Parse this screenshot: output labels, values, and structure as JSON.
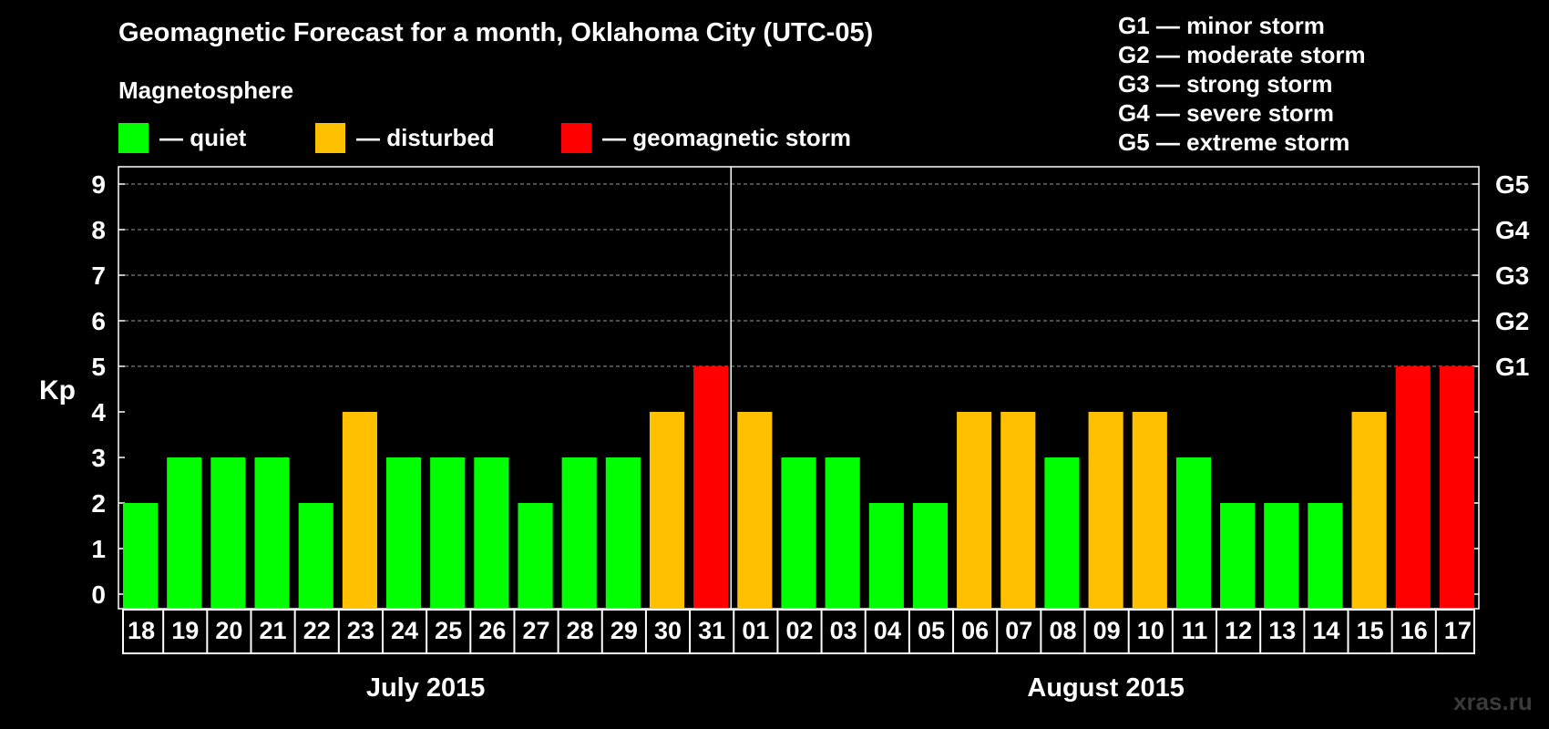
{
  "title": "Geomagnetic Forecast for a month, Oklahoma City (UTC-05)",
  "magnetosphere_label": "Magnetosphere",
  "legend": [
    {
      "label": "— quiet",
      "color": "#00ff00"
    },
    {
      "label": "— disturbed",
      "color": "#ffc000"
    },
    {
      "label": "— geomagnetic storm",
      "color": "#ff0000"
    }
  ],
  "storm_levels": [
    "G1 — minor storm",
    "G2 — moderate storm",
    "G3 — strong storm",
    "G4 — severe storm",
    "G5 — extreme storm"
  ],
  "watermark": "xras.ru",
  "chart_data": {
    "type": "bar",
    "ylabel": "Kp",
    "ylim": [
      0,
      9
    ],
    "yticks": [
      0,
      1,
      2,
      3,
      4,
      5,
      6,
      7,
      8,
      9
    ],
    "right_ticks": [
      {
        "value": 5,
        "label": "G1"
      },
      {
        "value": 6,
        "label": "G2"
      },
      {
        "value": 7,
        "label": "G3"
      },
      {
        "value": 8,
        "label": "G4"
      },
      {
        "value": 9,
        "label": "G5"
      }
    ],
    "categories": [
      "18",
      "19",
      "20",
      "21",
      "22",
      "23",
      "24",
      "25",
      "26",
      "27",
      "28",
      "29",
      "30",
      "31",
      "01",
      "02",
      "03",
      "04",
      "05",
      "06",
      "07",
      "08",
      "09",
      "10",
      "11",
      "12",
      "13",
      "14",
      "15",
      "16",
      "17"
    ],
    "values": [
      2,
      3,
      3,
      3,
      2,
      4,
      3,
      3,
      3,
      2,
      3,
      3,
      4,
      5,
      4,
      3,
      3,
      2,
      2,
      4,
      4,
      3,
      4,
      4,
      3,
      2,
      2,
      2,
      4,
      5,
      5
    ],
    "months": [
      {
        "label": "July 2015",
        "start_index": 0,
        "count": 14
      },
      {
        "label": "August 2015",
        "start_index": 14,
        "count": 17
      }
    ],
    "color_rule": {
      "quiet_max": 3,
      "disturbed": 4,
      "storm_min": 5
    },
    "colors": {
      "quiet": "#00ff00",
      "disturbed": "#ffc000",
      "storm": "#ff0000"
    },
    "grid_dashed_from": 5
  }
}
